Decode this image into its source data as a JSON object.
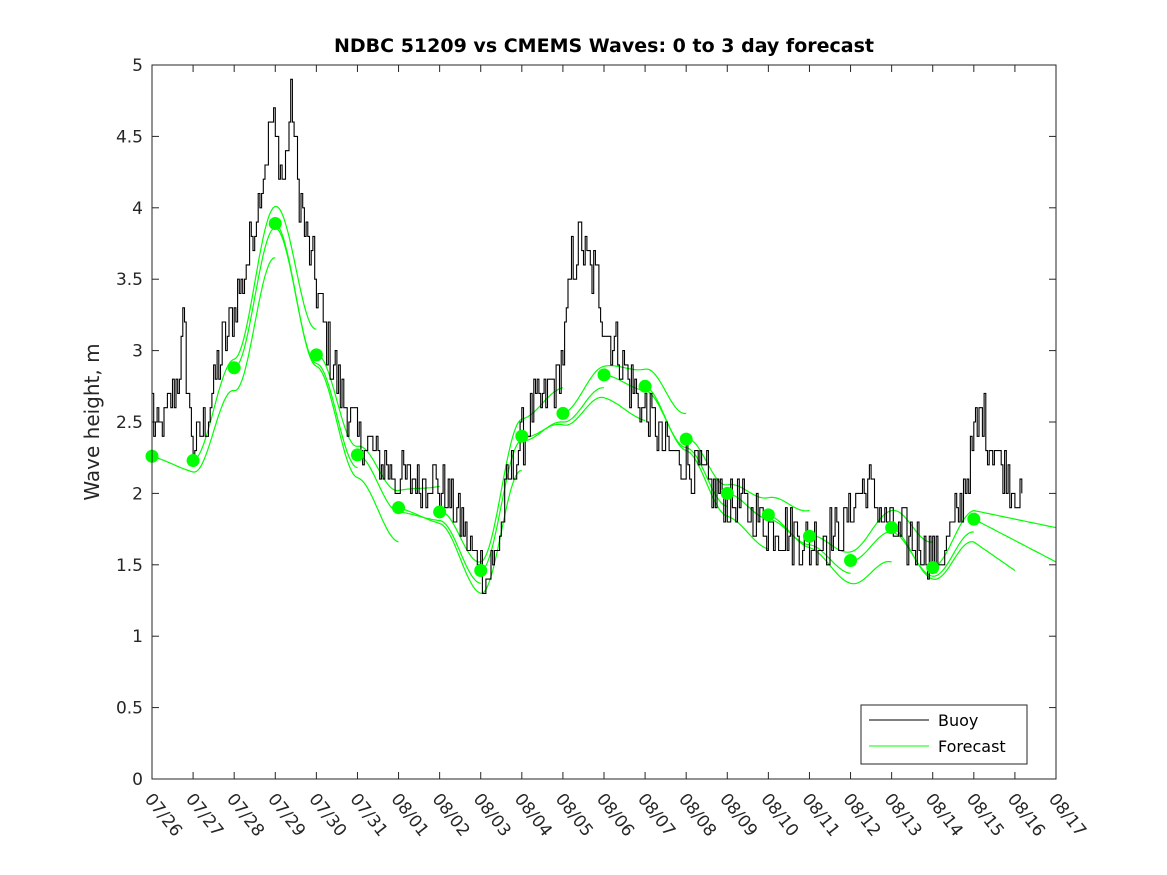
{
  "chart_data": {
    "type": "line",
    "title": "NDBC 51209 vs CMEMS Waves: 0 to 3 day forecast",
    "xlabel": "",
    "ylabel": "Wave height, m",
    "ylim": [
      0,
      5
    ],
    "yticks": [
      0,
      0.5,
      1,
      1.5,
      2,
      2.5,
      3,
      3.5,
      4,
      4.5,
      5
    ],
    "ytick_labels": [
      "0",
      "0.5",
      "1",
      "1.5",
      "2",
      "2.5",
      "3",
      "3.5",
      "4",
      "4.5",
      "5"
    ],
    "xlim_days": [
      0,
      22
    ],
    "xtick_labels": [
      "07/26",
      "07/27",
      "07/28",
      "07/29",
      "07/30",
      "07/31",
      "08/01",
      "08/02",
      "08/03",
      "08/04",
      "08/05",
      "08/06",
      "08/07",
      "08/08",
      "08/09",
      "08/10",
      "08/11",
      "08/12",
      "08/13",
      "08/14",
      "08/15",
      "08/16",
      "08/17"
    ],
    "legend": {
      "position": "bottom-right",
      "entries": [
        "Buoy",
        "Forecast"
      ]
    },
    "colors": {
      "buoy": "#000000",
      "forecast": "#00ff00",
      "axis": "#262626"
    },
    "buoy_anchors": {
      "x": [
        0,
        0.1,
        0.3,
        0.5,
        0.7,
        0.75,
        0.9,
        1.0,
        1.2,
        1.4,
        1.6,
        1.8,
        2.0,
        2.3,
        2.6,
        2.9,
        3.0,
        3.2,
        3.4,
        3.55,
        3.7,
        3.9,
        4.1,
        4.4,
        4.7,
        5.0,
        5.3,
        5.6,
        6.0,
        6.4,
        6.8,
        7.2,
        7.5,
        7.8,
        7.95,
        8.1,
        8.3,
        8.5,
        8.7,
        9.0,
        9.3,
        9.6,
        9.9,
        10.1,
        10.2,
        10.4,
        10.6,
        10.8,
        11.0,
        11.3,
        11.6,
        11.9,
        12.2,
        12.5,
        12.8,
        13.1,
        13.4,
        13.7,
        14.0,
        14.4,
        14.8,
        15.2,
        15.6,
        16.0,
        16.4,
        16.8,
        17.1,
        17.4,
        17.7,
        18.0,
        18.3,
        18.6,
        18.9,
        19.2,
        19.5,
        19.8,
        20.0,
        20.2,
        20.4,
        20.6,
        20.8,
        21.0,
        21.2
      ],
      "y": [
        2.6,
        2.4,
        2.5,
        2.7,
        2.9,
        3.2,
        2.6,
        2.3,
        2.4,
        2.6,
        2.9,
        3.1,
        3.3,
        3.6,
        4.1,
        4.6,
        4.5,
        4.2,
        4.8,
        4.1,
        3.9,
        3.6,
        3.3,
        2.9,
        2.6,
        2.4,
        2.3,
        2.2,
        2.1,
        2.1,
        2.1,
        2.0,
        1.8,
        1.55,
        1.6,
        1.4,
        1.5,
        1.8,
        2.1,
        2.4,
        2.6,
        2.7,
        2.8,
        3.2,
        3.6,
        3.8,
        3.6,
        3.5,
        3.2,
        3.0,
        2.8,
        2.6,
        2.5,
        2.3,
        2.25,
        2.2,
        2.1,
        2.0,
        1.95,
        1.9,
        1.8,
        1.75,
        1.7,
        1.65,
        1.7,
        1.75,
        1.95,
        2.05,
        1.9,
        1.75,
        1.7,
        1.65,
        1.6,
        1.55,
        1.75,
        2.1,
        2.4,
        2.55,
        2.35,
        2.25,
        2.15,
        2.05,
        1.9
      ]
    },
    "forecast_dots": {
      "x": [
        0,
        1,
        2,
        3,
        4,
        5,
        6,
        7,
        8,
        9,
        10,
        11,
        12,
        13,
        14,
        15,
        16,
        17,
        18,
        19,
        20
      ],
      "y": [
        2.26,
        2.23,
        2.88,
        3.89,
        2.97,
        2.27,
        1.9,
        1.87,
        1.46,
        2.4,
        2.56,
        2.83,
        2.75,
        2.38,
        2.0,
        1.85,
        1.7,
        1.53,
        1.76,
        1.48,
        1.82
      ]
    }
  }
}
